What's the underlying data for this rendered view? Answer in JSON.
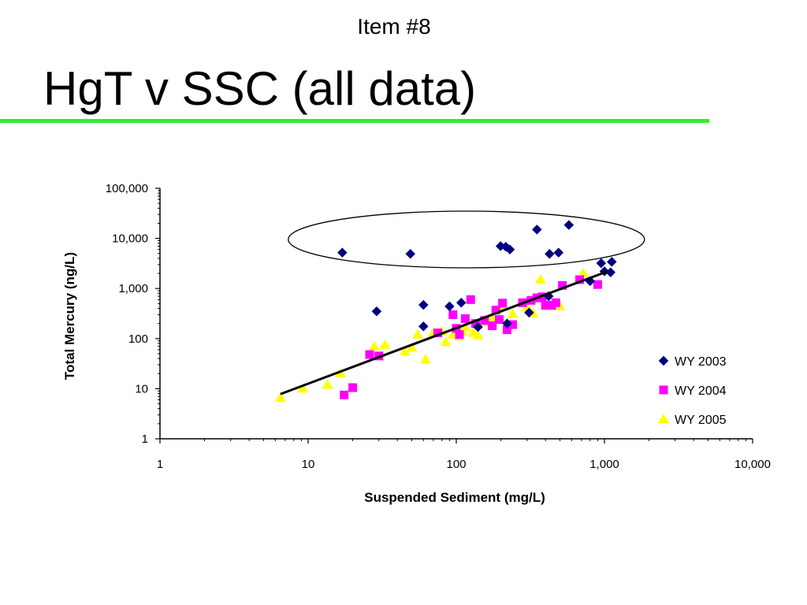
{
  "slide": {
    "item_label": "Item #8",
    "title": "HgT v SSC (all data)",
    "rule_color": "#33ee33"
  },
  "chart_data": {
    "type": "scatter",
    "title": "",
    "xlabel": "Suspended Sediment (mg/L)",
    "ylabel": "Total Mercury (ng/L)",
    "x_scale": "log",
    "y_scale": "log",
    "xlim": [
      1,
      10000
    ],
    "ylim": [
      1,
      100000
    ],
    "x_ticks": [
      1,
      10,
      100,
      1000,
      10000
    ],
    "x_tick_labels": [
      "1",
      "10",
      "100",
      "1,000",
      "10,000"
    ],
    "y_ticks": [
      1,
      10,
      100,
      1000,
      10000,
      100000
    ],
    "y_tick_labels": [
      "1",
      "10",
      "100",
      "1,000",
      "10,000",
      "100,000"
    ],
    "grid": false,
    "legend_position": "right",
    "series": [
      {
        "name": "WY 2003",
        "marker": "diamond",
        "color": "#000080",
        "points": [
          [
            17,
            5200
          ],
          [
            49,
            4900
          ],
          [
            199,
            7000
          ],
          [
            216,
            6800
          ],
          [
            230,
            6000
          ],
          [
            350,
            15000
          ],
          [
            426,
            4900
          ],
          [
            490,
            5200
          ],
          [
            575,
            18500
          ],
          [
            29,
            350
          ],
          [
            60,
            470
          ],
          [
            90,
            440
          ],
          [
            108,
            520
          ],
          [
            60,
            175
          ],
          [
            140,
            170
          ],
          [
            220,
            200
          ],
          [
            310,
            330
          ],
          [
            420,
            700
          ],
          [
            800,
            1400
          ],
          [
            950,
            3200
          ],
          [
            1000,
            2200
          ],
          [
            1120,
            3400
          ],
          [
            1100,
            2100
          ]
        ]
      },
      {
        "name": "WY 2004",
        "marker": "square",
        "color": "#ff00ff",
        "points": [
          [
            17.5,
            7.5
          ],
          [
            20,
            10.5
          ],
          [
            26,
            48
          ],
          [
            30,
            45
          ],
          [
            75,
            130
          ],
          [
            95,
            300
          ],
          [
            100,
            160
          ],
          [
            115,
            250
          ],
          [
            125,
            600
          ],
          [
            135,
            200
          ],
          [
            155,
            230
          ],
          [
            175,
            180
          ],
          [
            185,
            370
          ],
          [
            195,
            240
          ],
          [
            205,
            510
          ],
          [
            220,
            150
          ],
          [
            240,
            190
          ],
          [
            280,
            520
          ],
          [
            320,
            580
          ],
          [
            350,
            650
          ],
          [
            380,
            680
          ],
          [
            400,
            460
          ],
          [
            440,
            460
          ],
          [
            470,
            520
          ],
          [
            520,
            1150
          ],
          [
            680,
            1500
          ],
          [
            900,
            1200
          ],
          [
            105,
            120
          ]
        ]
      },
      {
        "name": "WY 2005",
        "marker": "triangle",
        "color": "#ffff00",
        "points": [
          [
            6.5,
            6.5
          ],
          [
            9.2,
            10
          ],
          [
            13.5,
            12
          ],
          [
            16.5,
            20
          ],
          [
            28,
            70
          ],
          [
            33,
            75
          ],
          [
            45,
            55
          ],
          [
            50,
            65
          ],
          [
            55,
            120
          ],
          [
            62,
            38
          ],
          [
            70,
            130
          ],
          [
            80,
            140
          ],
          [
            85,
            85
          ],
          [
            95,
            120
          ],
          [
            105,
            110
          ],
          [
            115,
            170
          ],
          [
            130,
            130
          ],
          [
            140,
            115
          ],
          [
            155,
            210
          ],
          [
            175,
            260
          ],
          [
            210,
            430
          ],
          [
            240,
            310
          ],
          [
            300,
            420
          ],
          [
            330,
            320
          ],
          [
            370,
            1500
          ],
          [
            500,
            440
          ],
          [
            720,
            2000
          ],
          [
            110,
            140
          ]
        ]
      }
    ],
    "trendline": {
      "x": [
        6.5,
        1050
      ],
      "y": [
        7.8,
        2200
      ],
      "color": "#000000"
    },
    "annotation": {
      "shape": "ellipse",
      "center": [
        110,
        9500
      ],
      "note": "outline around WY 2003 high-mercury points"
    }
  }
}
